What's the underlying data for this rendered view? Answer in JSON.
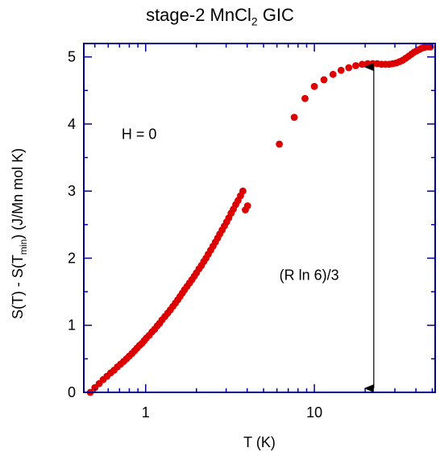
{
  "chart_data": {
    "type": "scatter",
    "title": {
      "main": "stage-2 MnCl",
      "sub": "2",
      "tail": " GIC"
    },
    "xlabel": "T (K)",
    "ylabel": {
      "pre": "S(T) - S(T",
      "sub": "min",
      "post": ") (J/Mn mol K)"
    },
    "x_scale": "log",
    "xlim": [
      0.43,
      52
    ],
    "ylim": [
      0,
      5.2
    ],
    "x_tick_labels": [
      {
        "value": 1,
        "label": "1"
      },
      {
        "value": 10,
        "label": "10"
      }
    ],
    "y_tick_labels": [
      {
        "value": 0,
        "label": "0"
      },
      {
        "value": 1,
        "label": "1"
      },
      {
        "value": 2,
        "label": "2"
      },
      {
        "value": 3,
        "label": "3"
      },
      {
        "value": 4,
        "label": "4"
      },
      {
        "value": 5,
        "label": "5"
      }
    ],
    "grid": false,
    "marker_color": "#dd0000",
    "axis_color": "#000099",
    "annotations": [
      {
        "text": "H = 0",
        "x": 0.72,
        "y": 3.85
      },
      {
        "text": "(R ln 6)/3",
        "x": 6.2,
        "y": 1.75
      }
    ],
    "arrow": {
      "x": 22.5,
      "y_from": 0.06,
      "y_to": 4.85
    },
    "series": [
      {
        "x": [
          0.47,
          0.5,
          0.53,
          0.56,
          0.59,
          0.62,
          0.65,
          0.68,
          0.71,
          0.74,
          0.77,
          0.8,
          0.83,
          0.86,
          0.89,
          0.92,
          0.95,
          0.98,
          1.01,
          1.05,
          1.09,
          1.13,
          1.17,
          1.21,
          1.25,
          1.3,
          1.35,
          1.4,
          1.45,
          1.5,
          1.55,
          1.6,
          1.65,
          1.7,
          1.76,
          1.82,
          1.88,
          1.94,
          2.0,
          2.07,
          2.14,
          2.21,
          2.28,
          2.35,
          2.43,
          2.51,
          2.59,
          2.67,
          2.75,
          2.84,
          2.93,
          3.02,
          3.11,
          3.21,
          3.31,
          3.42,
          3.53,
          3.65,
          3.77,
          3.9,
          4.02,
          6.2,
          7.6,
          8.8,
          10.0,
          11.4,
          12.9,
          14.4,
          16.0,
          17.6,
          19.2,
          20.7,
          22.2,
          23.6,
          25.0,
          26.4,
          27.8,
          29.2,
          30.6,
          32.0,
          33.4,
          34.8,
          36.2,
          37.6,
          39.0,
          40.4,
          41.8,
          43.2,
          44.6,
          46.0,
          47.4,
          48.8
        ],
        "y": [
          0.0,
          0.07,
          0.13,
          0.19,
          0.24,
          0.29,
          0.33,
          0.38,
          0.42,
          0.46,
          0.5,
          0.54,
          0.58,
          0.62,
          0.66,
          0.7,
          0.73,
          0.77,
          0.81,
          0.85,
          0.9,
          0.94,
          0.99,
          1.03,
          1.08,
          1.13,
          1.18,
          1.23,
          1.28,
          1.33,
          1.38,
          1.43,
          1.48,
          1.53,
          1.58,
          1.63,
          1.68,
          1.73,
          1.78,
          1.84,
          1.89,
          1.95,
          2.0,
          2.06,
          2.12,
          2.18,
          2.24,
          2.3,
          2.36,
          2.42,
          2.48,
          2.54,
          2.6,
          2.67,
          2.73,
          2.8,
          2.86,
          2.93,
          3.0,
          2.72,
          2.78,
          3.7,
          4.1,
          4.38,
          4.56,
          4.66,
          4.74,
          4.8,
          4.84,
          4.87,
          4.89,
          4.9,
          4.9,
          4.9,
          4.89,
          4.89,
          4.89,
          4.9,
          4.91,
          4.93,
          4.95,
          4.98,
          5.01,
          5.04,
          5.07,
          5.09,
          5.11,
          5.13,
          5.14,
          5.15,
          5.15,
          5.15
        ]
      }
    ]
  }
}
